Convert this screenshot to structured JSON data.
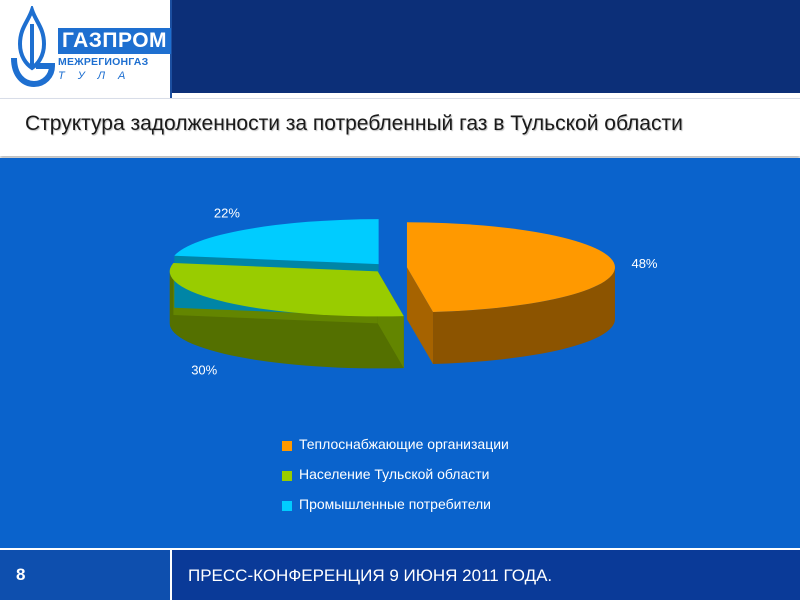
{
  "logo": {
    "main_text": "ГАЗПРОМ",
    "sub_text": "МЕЖРЕГИОНГАЗ",
    "city_text": "ТУЛА",
    "brand_color": "#1e6fd0"
  },
  "slide": {
    "title": "Структура задолженности за потребленный газ в Тульской области"
  },
  "chart_data": {
    "type": "pie",
    "style": "3d-exploded",
    "categories": [
      "Теплоснабжающие организации",
      "Население Тульской области",
      "Промышленные потребители"
    ],
    "values": [
      48,
      30,
      22
    ],
    "data_labels": [
      "48%",
      "30%",
      "22%"
    ],
    "colors": [
      "#ff9900",
      "#99cc00",
      "#00ccff"
    ],
    "title": "",
    "legend_position": "bottom"
  },
  "footer": {
    "page_number": "8",
    "text": "ПРЕСС-КОНФЕРЕНЦИЯ  9 ИЮНЯ 2011 ГОДА."
  }
}
